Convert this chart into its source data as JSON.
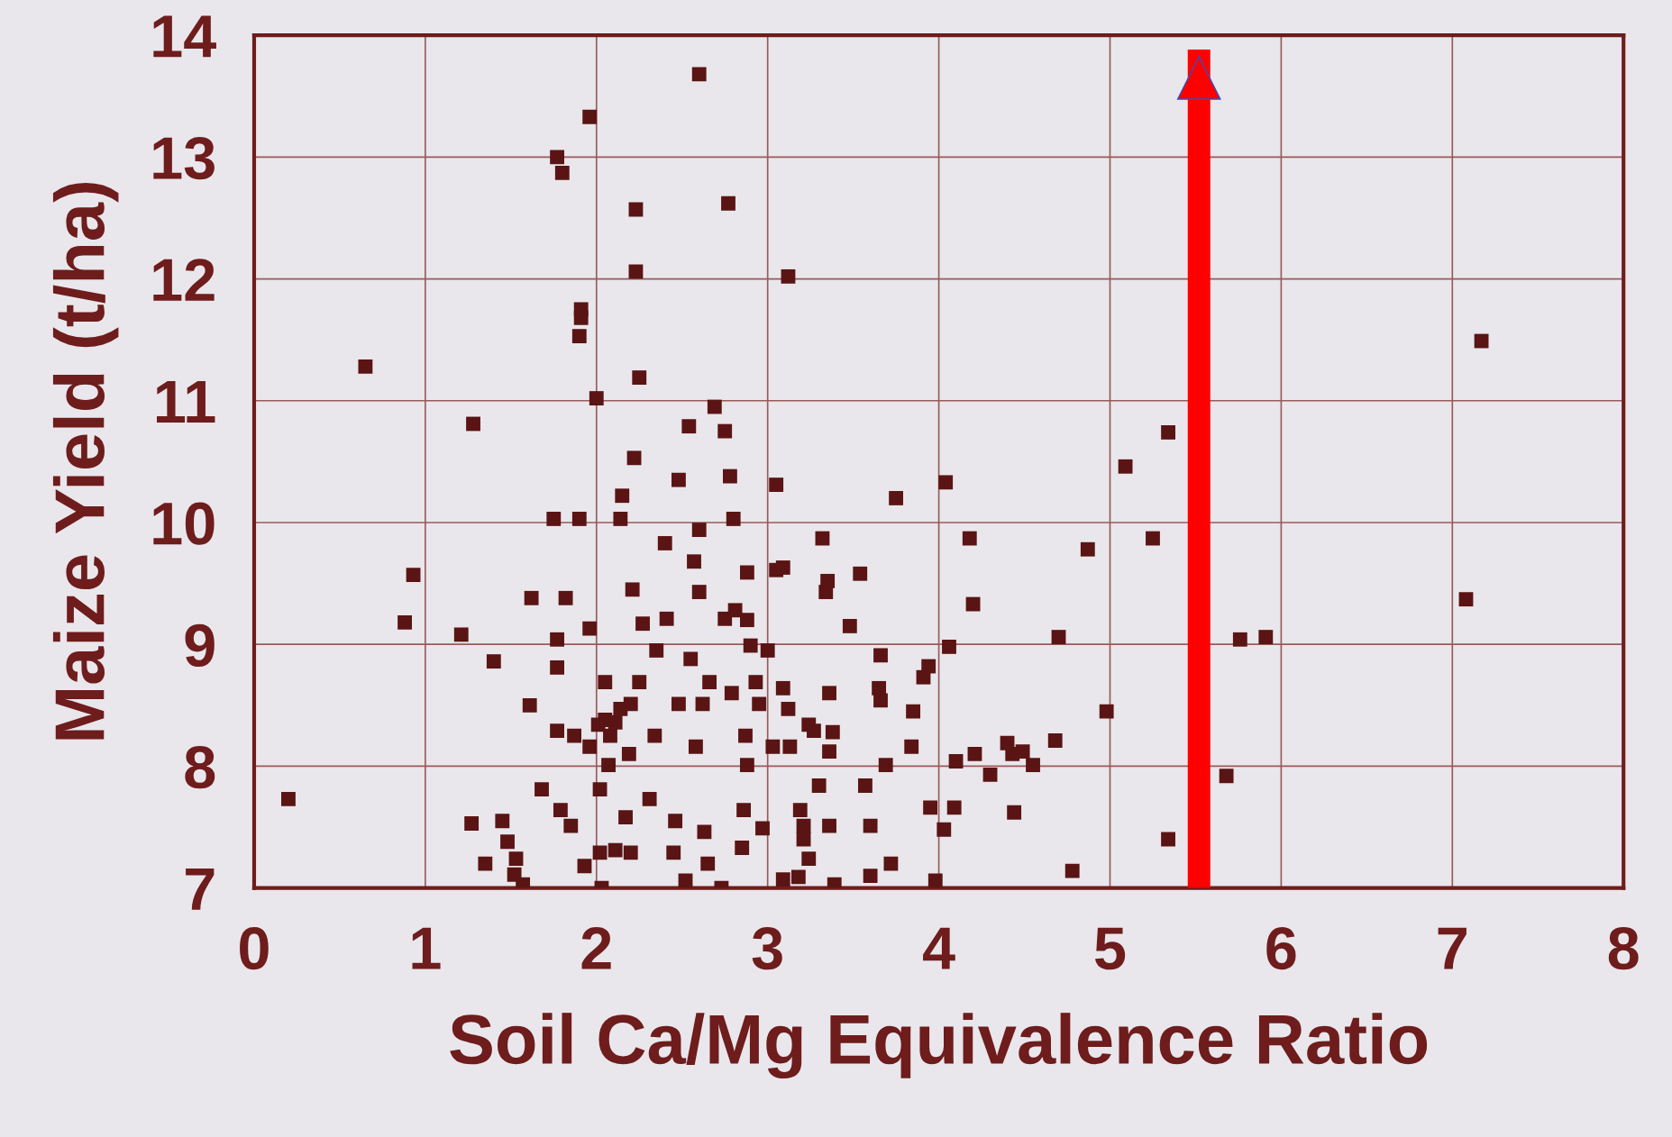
{
  "chart_data": {
    "type": "scatter",
    "xlabel": "Soil Ca/Mg Equivalence Ratio",
    "ylabel": "Maize Yield (t/ha)",
    "xlim": [
      0,
      8
    ],
    "ylim": [
      7,
      14
    ],
    "xticks": [
      0,
      1,
      2,
      3,
      4,
      5,
      6,
      7,
      8
    ],
    "yticks": [
      7,
      8,
      9,
      10,
      11,
      12,
      13,
      14
    ],
    "grid": true,
    "marker": "square",
    "ref_lines": [
      {
        "axis": "x",
        "value": 5.52,
        "color": "#ff0000"
      }
    ],
    "series": [
      {
        "color": "#5a1414",
        "x": [
          0.2,
          0.65,
          0.93,
          0.88,
          1.21,
          1.28,
          1.4,
          1.27,
          1.45,
          1.35,
          1.48,
          1.53,
          1.52,
          1.57,
          1.61,
          1.62,
          1.68,
          1.75,
          1.77,
          1.8,
          1.82,
          1.77,
          1.77,
          1.77,
          1.79,
          1.85,
          1.9,
          1.91,
          1.91,
          1.9,
          1.96,
          2.0,
          1.93,
          1.96,
          1.87,
          1.96,
          2.01,
          2.05,
          2.11,
          2.07,
          2.02,
          2.02,
          2.03,
          2.14,
          2.15,
          2.11,
          2.2,
          2.17,
          2.19,
          2.23,
          2.23,
          2.25,
          2.22,
          2.21,
          2.2,
          2.27,
          2.25,
          2.31,
          2.34,
          2.35,
          2.4,
          2.41,
          2.45,
          2.46,
          2.48,
          2.52,
          2.55,
          2.54,
          2.48,
          2.57,
          2.6,
          2.6,
          2.6,
          2.58,
          2.62,
          2.63,
          2.65,
          2.66,
          2.69,
          2.73,
          2.75,
          2.77,
          2.78,
          2.75,
          2.79,
          2.8,
          2.81,
          2.85,
          2.86,
          2.88,
          2.88,
          2.87,
          2.88,
          2.9,
          2.93,
          2.95,
          2.97,
          3.0,
          3.03,
          3.05,
          3.05,
          3.09,
          3.09,
          3.12,
          3.09,
          3.12,
          3.13,
          3.18,
          3.19,
          3.21,
          3.21,
          3.24,
          3.24,
          3.27,
          3.3,
          3.32,
          3.34,
          3.35,
          3.36,
          3.36,
          3.38,
          3.39,
          3.36,
          3.48,
          3.54,
          3.57,
          3.6,
          3.6,
          3.65,
          3.66,
          3.66,
          3.69,
          3.72,
          3.75,
          3.84,
          3.85,
          3.91,
          3.94,
          3.98,
          3.95,
          4.03,
          4.04,
          4.06,
          4.1,
          4.09,
          4.18,
          4.2,
          4.21,
          4.3,
          4.4,
          4.43,
          4.44,
          4.49,
          4.55,
          4.68,
          4.7,
          4.78,
          4.87,
          4.98,
          5.09,
          5.25,
          5.34,
          5.34,
          5.68,
          5.76,
          5.91,
          7.08,
          7.17,
          2.08,
          2.14,
          2.05
        ],
        "values": [
          7.73,
          11.28,
          9.57,
          9.18,
          9.08,
          10.81,
          8.86,
          7.53,
          7.55,
          7.2,
          7.38,
          7.24,
          7.11,
          7.03,
          8.5,
          9.38,
          7.81,
          10.03,
          13.0,
          12.87,
          9.38,
          9.04,
          8.81,
          8.29,
          7.64,
          7.51,
          10.03,
          11.75,
          11.68,
          11.53,
          13.33,
          11.02,
          7.18,
          9.13,
          8.25,
          8.16,
          8.34,
          8.69,
          8.36,
          8.01,
          7.81,
          7.29,
          7.0,
          10.03,
          10.22,
          7.31,
          7.29,
          7.58,
          8.1,
          12.57,
          12.06,
          11.19,
          10.53,
          9.45,
          8.51,
          9.17,
          8.69,
          7.73,
          8.25,
          8.95,
          9.83,
          9.21,
          7.29,
          7.55,
          8.51,
          7.06,
          8.88,
          10.79,
          10.35,
          9.68,
          13.68,
          9.94,
          9.43,
          8.16,
          8.51,
          7.46,
          7.2,
          8.69,
          10.95,
          7.0,
          10.75,
          12.62,
          10.38,
          9.21,
          8.6,
          10.03,
          9.28,
          7.33,
          7.64,
          9.2,
          9.59,
          8.25,
          8.01,
          8.99,
          8.69,
          8.51,
          7.49,
          8.95,
          8.16,
          10.31,
          9.61,
          7.07,
          9.63,
          12.02,
          8.64,
          8.47,
          8.16,
          7.09,
          7.64,
          7.51,
          7.4,
          7.24,
          8.34,
          8.29,
          7.84,
          9.87,
          9.43,
          9.52,
          8.6,
          7.51,
          8.28,
          7.03,
          8.12,
          9.15,
          9.58,
          7.84,
          7.51,
          7.1,
          8.64,
          8.91,
          8.54,
          8.01,
          7.2,
          10.2,
          8.16,
          8.45,
          8.73,
          8.82,
          7.06,
          7.66,
          7.48,
          10.33,
          8.98,
          8.04,
          7.66,
          9.87,
          9.33,
          8.1,
          7.93,
          8.19,
          8.1,
          7.62,
          8.12,
          8.01,
          8.21,
          9.06,
          7.14,
          9.78,
          8.45,
          10.46,
          9.87,
          10.74,
          7.4,
          7.92,
          9.04,
          9.06,
          9.37,
          11.49,
          8.25,
          8.47,
          8.38
        ]
      }
    ]
  }
}
